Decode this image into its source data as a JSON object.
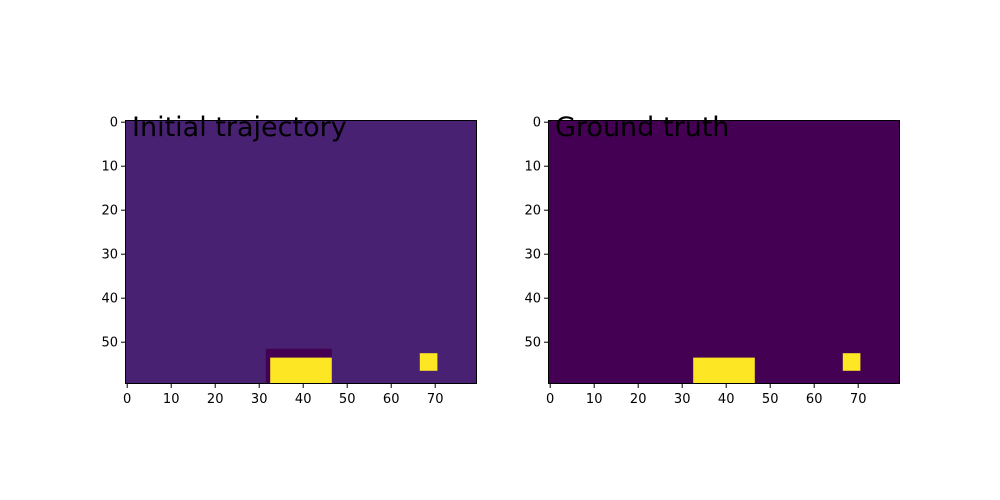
{
  "chart_data": [
    {
      "type": "heatmap",
      "title": "Initial trajectory",
      "grid": false,
      "xlim": [
        -0.5,
        79.5
      ],
      "ylim": [
        59.5,
        -0.5
      ],
      "xticks": [
        0,
        10,
        20,
        30,
        40,
        50,
        60,
        70
      ],
      "yticks": [
        0,
        10,
        20,
        30,
        40,
        50
      ],
      "background_color": "#482173",
      "cells": [
        {
          "x": [
            32,
            47
          ],
          "y": [
            52,
            60
          ],
          "color": "#440154"
        },
        {
          "x": [
            33,
            47
          ],
          "y": [
            54,
            60
          ],
          "color": "#fde725"
        },
        {
          "x": [
            67,
            71
          ],
          "y": [
            53,
            57
          ],
          "color": "#fde725"
        }
      ]
    },
    {
      "type": "heatmap",
      "title": "Ground truth",
      "grid": false,
      "xlim": [
        -0.5,
        79.5
      ],
      "ylim": [
        59.5,
        -0.5
      ],
      "xticks": [
        0,
        10,
        20,
        30,
        40,
        50,
        60,
        70
      ],
      "yticks": [
        0,
        10,
        20,
        30,
        40,
        50
      ],
      "background_color": "#440154",
      "cells": [
        {
          "x": [
            33,
            47
          ],
          "y": [
            54,
            60
          ],
          "color": "#fde725"
        },
        {
          "x": [
            67,
            71
          ],
          "y": [
            53,
            57
          ],
          "color": "#fde725"
        }
      ]
    }
  ]
}
